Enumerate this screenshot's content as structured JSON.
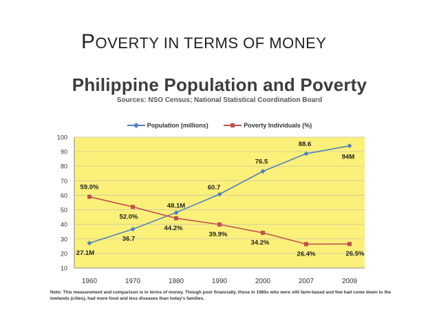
{
  "slide": {
    "title_first": "P",
    "title_rest": "overty in terms of money"
  },
  "chart_data": {
    "type": "line",
    "title": "Philippine Population and Poverty",
    "subtitle": "Sources: NSO Census; National Statistical Coordination Board",
    "categories": [
      "1960",
      "1970",
      "1980",
      "1990",
      "2000",
      "2007",
      "2009"
    ],
    "ylim": [
      10,
      100
    ],
    "yticks": [
      10,
      20,
      30,
      40,
      50,
      60,
      70,
      80,
      90,
      100
    ],
    "grid": true,
    "legend_position": "top",
    "plot_background": "#fbf07a",
    "series": [
      {
        "name": "Population (millions)",
        "color": "#4f81bd",
        "marker": "diamond",
        "values": [
          27.1,
          36.7,
          48.1,
          60.7,
          76.5,
          88.6,
          94
        ],
        "labels": [
          "27.1M",
          "36.7",
          "48.1M",
          "60.7",
          "76.5",
          "88.6",
          "94M"
        ]
      },
      {
        "name": "Poverty Individuals (%)",
        "color": "#c0504d",
        "marker": "square",
        "values": [
          59.0,
          52.0,
          44.2,
          39.9,
          34.2,
          26.4,
          26.5
        ],
        "labels": [
          "59.0%",
          "52.0%",
          "44.2%",
          "39.9%",
          "34.2%",
          "26.4%",
          "26.5%"
        ]
      }
    ],
    "note": "Note: This measurement and comparison is in terms of money. Though poor financially, those in 1960s who were still farm-based and few had come down to the lowlands (cities), had more food and less diseases than today's families."
  }
}
